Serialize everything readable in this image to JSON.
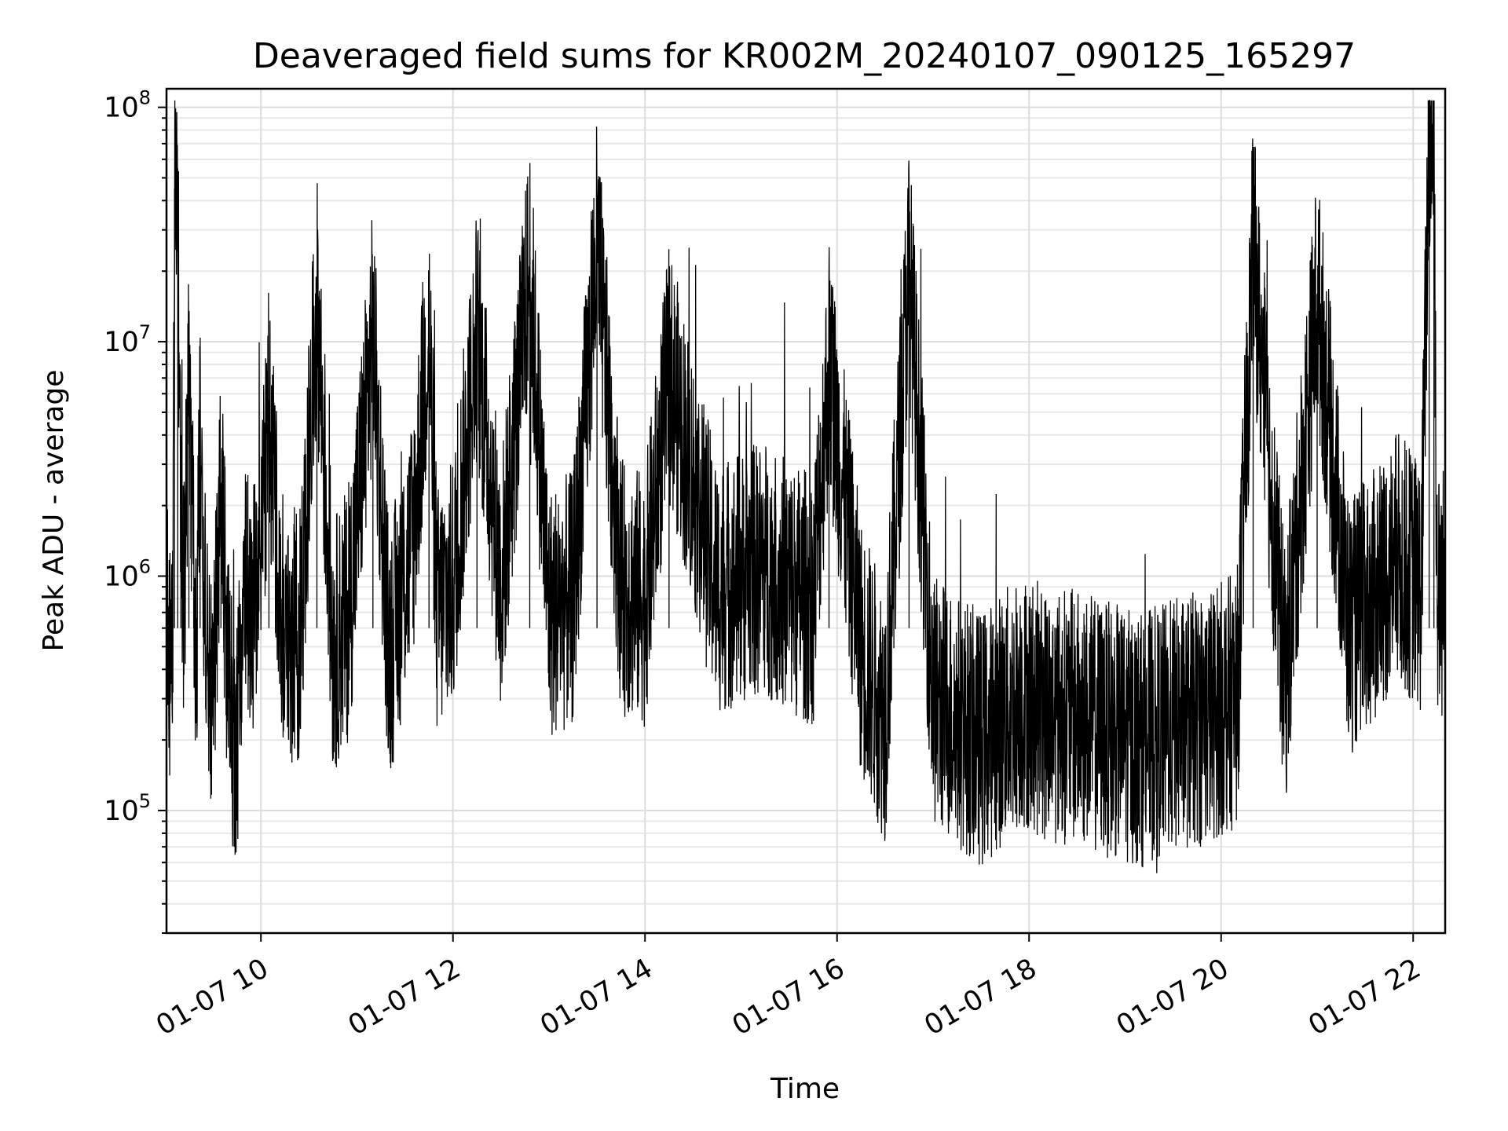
{
  "chart_data": {
    "type": "line",
    "title": "Deaveraged field sums for KR002M_20240107_090125_165297",
    "xlabel": "Time",
    "ylabel": "Peak ADU - average",
    "y_scale": "log",
    "xlim": [
      "2024-01-07 09:01",
      "2024-01-07 22:20"
    ],
    "ylim": [
      30000,
      120000000
    ],
    "grid": true,
    "x_ticks": [
      {
        "x": "2024-01-07 10:00",
        "label": "01-07 10"
      },
      {
        "x": "2024-01-07 12:00",
        "label": "01-07 12"
      },
      {
        "x": "2024-01-07 14:00",
        "label": "01-07 14"
      },
      {
        "x": "2024-01-07 16:00",
        "label": "01-07 16"
      },
      {
        "x": "2024-01-07 18:00",
        "label": "01-07 18"
      },
      {
        "x": "2024-01-07 20:00",
        "label": "01-07 20"
      },
      {
        "x": "2024-01-07 22:00",
        "label": "01-07 22"
      }
    ],
    "y_ticks": [
      {
        "value": 100000,
        "base": "10",
        "exp": "5"
      },
      {
        "value": 1000000,
        "base": "10",
        "exp": "6"
      },
      {
        "value": 10000000,
        "base": "10",
        "exp": "7"
      },
      {
        "value": 100000000,
        "base": "10",
        "exp": "8"
      }
    ],
    "series_color": "#000000",
    "series": [
      {
        "x": [
          "2024-01-07 09:01",
          "2024-01-07 09:03",
          "2024-01-07 09:05",
          "2024-01-07 09:06",
          "2024-01-07 09:08",
          "2024-01-07 09:10",
          "2024-01-07 09:12",
          "2024-01-07 09:15",
          "2024-01-07 09:18",
          "2024-01-07 09:20",
          "2024-01-07 09:22",
          "2024-01-07 09:25",
          "2024-01-07 09:28",
          "2024-01-07 09:30",
          "2024-01-07 09:35",
          "2024-01-07 09:40",
          "2024-01-07 09:45",
          "2024-01-07 09:50",
          "2024-01-07 09:58",
          "2024-01-07 10:05",
          "2024-01-07 10:15",
          "2024-01-07 10:25",
          "2024-01-07 10:35",
          "2024-01-07 10:45",
          "2024-01-07 10:55",
          "2024-01-07 11:10",
          "2024-01-07 11:20",
          "2024-01-07 11:35",
          "2024-01-07 11:45",
          "2024-01-07 11:50",
          "2024-01-07 12:00",
          "2024-01-07 12:15",
          "2024-01-07 12:30",
          "2024-01-07 12:48",
          "2024-01-07 13:00",
          "2024-01-07 13:15",
          "2024-01-07 13:30",
          "2024-01-07 13:45",
          "2024-01-07 14:00",
          "2024-01-07 14:15",
          "2024-01-07 14:45",
          "2024-01-07 15:00",
          "2024-01-07 15:15",
          "2024-01-07 15:30",
          "2024-01-07 15:45",
          "2024-01-07 15:55",
          "2024-01-07 16:15",
          "2024-01-07 16:30",
          "2024-01-07 16:45",
          "2024-01-07 17:00",
          "2024-01-07 17:30",
          "2024-01-07 17:55",
          "2024-01-07 18:10",
          "2024-01-07 18:30",
          "2024-01-07 18:50",
          "2024-01-07 19:10",
          "2024-01-07 19:30",
          "2024-01-07 19:50",
          "2024-01-07 20:10",
          "2024-01-07 20:20",
          "2024-01-07 20:40",
          "2024-01-07 21:00",
          "2024-01-07 21:20",
          "2024-01-07 21:35",
          "2024-01-07 21:50",
          "2024-01-07 22:05",
          "2024-01-07 22:10",
          "2024-01-07 22:13",
          "2024-01-07 22:15",
          "2024-01-07 22:20"
        ],
        "y": [
          800000,
          450000,
          900000,
          45000000,
          55000000,
          1200000,
          700000,
          6500000,
          900000,
          500000,
          5500000,
          800000,
          400000,
          250000,
          2500000,
          300000,
          180000,
          900000,
          700000,
          5000000,
          500000,
          600000,
          15000000,
          500000,
          700000,
          11000000,
          450000,
          1500000,
          12000000,
          700000,
          900000,
          11000000,
          900000,
          21000000,
          700000,
          800000,
          26000000,
          900000,
          800000,
          7500000,
          900000,
          1000000,
          1100000,
          900000,
          800000,
          8000000,
          500000,
          250000,
          21000000,
          300000,
          200000,
          300000,
          260000,
          250000,
          220000,
          200000,
          230000,
          250000,
          300000,
          26000000,
          350000,
          16000000,
          600000,
          800000,
          1200000,
          900000,
          80000000,
          70000000,
          800000,
          900000
        ]
      }
    ]
  }
}
